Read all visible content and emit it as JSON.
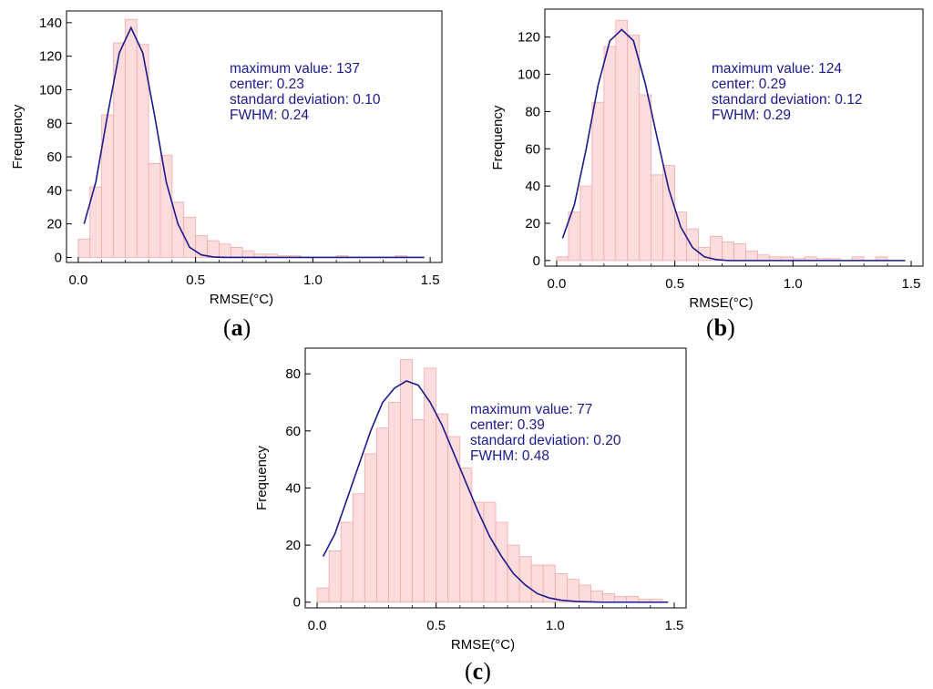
{
  "chart_data": [
    {
      "type": "bar",
      "panel_label": "a",
      "xlabel": "RMSE(°C)",
      "ylabel": "Frequency",
      "xlim": [
        -0.05,
        1.55
      ],
      "ylim": [
        -3,
        147
      ],
      "xticks": [
        0.0,
        0.5,
        1.0,
        1.5
      ],
      "xtick_labels": [
        "0.0",
        "0.5",
        "1.0",
        "1.5"
      ],
      "yticks": [
        0,
        20,
        40,
        60,
        80,
        100,
        120,
        140
      ],
      "ytick_labels": [
        "0",
        "20",
        "40",
        "60",
        "80",
        "100",
        "120",
        "140"
      ],
      "bin_width": 0.05,
      "bin_start": 0.0,
      "values": [
        11,
        42,
        85,
        128,
        142,
        127,
        56,
        61,
        33,
        24,
        13,
        10,
        8,
        6,
        4,
        2,
        2,
        1,
        1,
        0,
        0,
        0,
        1,
        0,
        0,
        0,
        0,
        1,
        0,
        0
      ],
      "fit_x": [
        0.025,
        0.075,
        0.125,
        0.175,
        0.225,
        0.275,
        0.325,
        0.375,
        0.425,
        0.475,
        0.525,
        0.575,
        0.625,
        0.7,
        0.8,
        1.0,
        1.25,
        1.475
      ],
      "fit_y": [
        20,
        45,
        85,
        122,
        137,
        122,
        85,
        45,
        20,
        6,
        1.5,
        0.3,
        0,
        0,
        0,
        0,
        0,
        0
      ],
      "annotation": [
        "maximum value: 137",
        "center: 0.23",
        "standard deviation: 0.10",
        "FWHM: 0.24"
      ]
    },
    {
      "type": "bar",
      "panel_label": "b",
      "xlabel": "RMSE(°C)",
      "ylabel": "Frequency",
      "xlim": [
        -0.05,
        1.55
      ],
      "ylim": [
        -3,
        135
      ],
      "xticks": [
        0.0,
        0.5,
        1.0,
        1.5
      ],
      "xtick_labels": [
        "0.0",
        "0.5",
        "1.0",
        "1.5"
      ],
      "yticks": [
        0,
        20,
        40,
        60,
        80,
        100,
        120
      ],
      "ytick_labels": [
        "0",
        "20",
        "40",
        "60",
        "80",
        "100",
        "120"
      ],
      "bin_width": 0.05,
      "bin_start": 0.0,
      "values": [
        2,
        26,
        40,
        85,
        115,
        129,
        121,
        89,
        46,
        51,
        26,
        17,
        7,
        13,
        10,
        9,
        5,
        3,
        2,
        2,
        1,
        2,
        1,
        1,
        0,
        2,
        0,
        2,
        0,
        0
      ],
      "fit_x": [
        0.025,
        0.075,
        0.125,
        0.175,
        0.225,
        0.275,
        0.325,
        0.375,
        0.425,
        0.475,
        0.525,
        0.575,
        0.625,
        0.675,
        0.725,
        0.8,
        1.0,
        1.25,
        1.475
      ],
      "fit_y": [
        12,
        30,
        60,
        94,
        118,
        124,
        118,
        95,
        66,
        38,
        18,
        7,
        2,
        0.5,
        0,
        0,
        0,
        0,
        0
      ],
      "annotation": [
        "maximum value: 124",
        "center: 0.29",
        "standard deviation: 0.12",
        "FWHM: 0.29"
      ]
    },
    {
      "type": "bar",
      "panel_label": "c",
      "xlabel": "RMSE(°C)",
      "ylabel": "Frequency",
      "xlim": [
        -0.05,
        1.55
      ],
      "ylim": [
        -2,
        89
      ],
      "xticks": [
        0.0,
        0.5,
        1.0,
        1.5
      ],
      "xtick_labels": [
        "0.0",
        "0.5",
        "1.0",
        "1.5"
      ],
      "yticks": [
        0,
        20,
        40,
        60,
        80
      ],
      "ytick_labels": [
        "0",
        "20",
        "40",
        "60",
        "80"
      ],
      "bin_width": 0.05,
      "bin_start": 0.0,
      "values": [
        5,
        18,
        28,
        38,
        52,
        61,
        70,
        85,
        64,
        82,
        66,
        58,
        47,
        35,
        35,
        28,
        20,
        16,
        13,
        13,
        10,
        8,
        6,
        4,
        3,
        2,
        2,
        1,
        1,
        0
      ],
      "fit_x": [
        0.025,
        0.075,
        0.125,
        0.175,
        0.225,
        0.275,
        0.325,
        0.375,
        0.425,
        0.475,
        0.525,
        0.575,
        0.625,
        0.675,
        0.725,
        0.775,
        0.825,
        0.875,
        0.925,
        0.975,
        1.025,
        1.1,
        1.2,
        1.35,
        1.475
      ],
      "fit_y": [
        16,
        24,
        36,
        48,
        60,
        70,
        75,
        77.5,
        76,
        70,
        62,
        52,
        42,
        32,
        23,
        16,
        10,
        6,
        3,
        1.5,
        0.7,
        0.2,
        0,
        0,
        0
      ],
      "annotation": [
        "maximum value: 77",
        "center: 0.39",
        "standard deviation: 0.20",
        "FWHM: 0.48"
      ]
    }
  ]
}
